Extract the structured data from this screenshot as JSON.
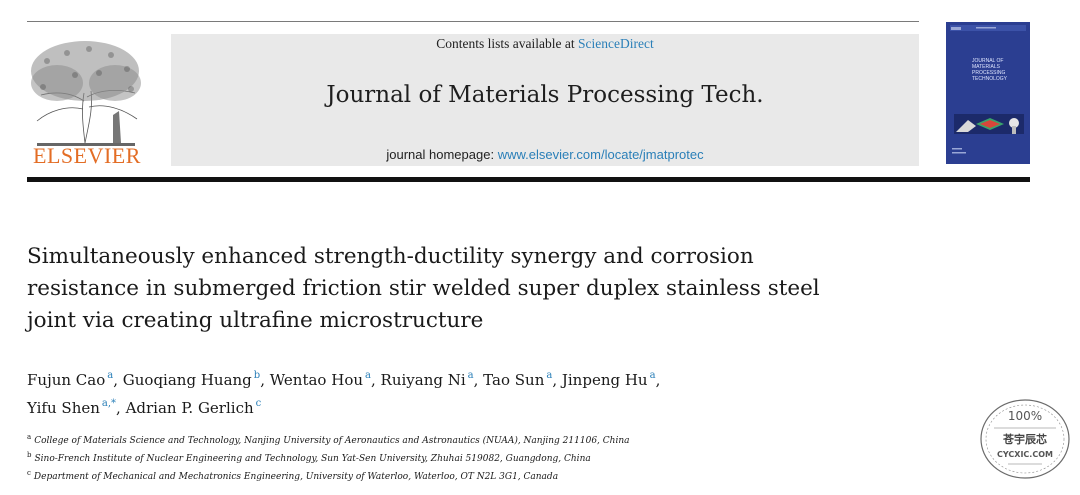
{
  "masthead": {
    "contents_prefix": "Contents lists available at ",
    "contents_link": "ScienceDirect",
    "journal_title": "Journal of Materials Processing Tech.",
    "homepage_prefix": "journal homepage: ",
    "homepage_url": "www.elsevier.com/locate/jmatprotec",
    "publisher": "ELSEVIER"
  },
  "cover": {
    "title_line1": "JOURNAL OF MATERIALS",
    "title_line2": "PROCESSING TECHNOLOGY",
    "color": "#2b3e91"
  },
  "article": {
    "title_lines": [
      "Simultaneously enhanced strength-ductility synergy and corrosion",
      "resistance in submerged friction stir welded super duplex stainless steel",
      "joint via creating ultrafine microstructure"
    ],
    "authors": [
      {
        "name": "Fujun Cao",
        "aff": "a",
        "sep": ", "
      },
      {
        "name": "Guoqiang Huang",
        "aff": "b",
        "sep": ", "
      },
      {
        "name": "Wentao Hou",
        "aff": "a",
        "sep": ", "
      },
      {
        "name": "Ruiyang Ni",
        "aff": "a",
        "sep": ", "
      },
      {
        "name": "Tao Sun",
        "aff": "a",
        "sep": ", "
      },
      {
        "name": "Jinpeng Hu",
        "aff": "a",
        "sep": ","
      },
      {
        "name": "Yifu Shen",
        "aff": "a,*",
        "sep": ", "
      },
      {
        "name": "Adrian P. Gerlich",
        "aff": "c",
        "sep": ""
      }
    ],
    "affiliations": [
      {
        "key": "a",
        "text": "College of Materials Science and Technology, Nanjing University of Aeronautics and Astronautics (NUAA), Nanjing 211106, China"
      },
      {
        "key": "b",
        "text": "Sino-French Institute of Nuclear Engineering and Technology, Sun Yat-Sen University, Zhuhai 519082, Guangdong, China"
      },
      {
        "key": "c",
        "text": "Department of Mechanical and Mechatronics Engineering, University of Waterloo, Waterloo, OT N2L 3G1, Canada"
      }
    ]
  },
  "stamp": {
    "top_text": "100%",
    "middle_text": "苍宇辰芯",
    "bottom_text": "CYCXIC.COM"
  },
  "colors": {
    "link": "#2a7fb8",
    "elsevier_orange": "#e36d25",
    "masthead_bg": "#e9e9e9"
  }
}
